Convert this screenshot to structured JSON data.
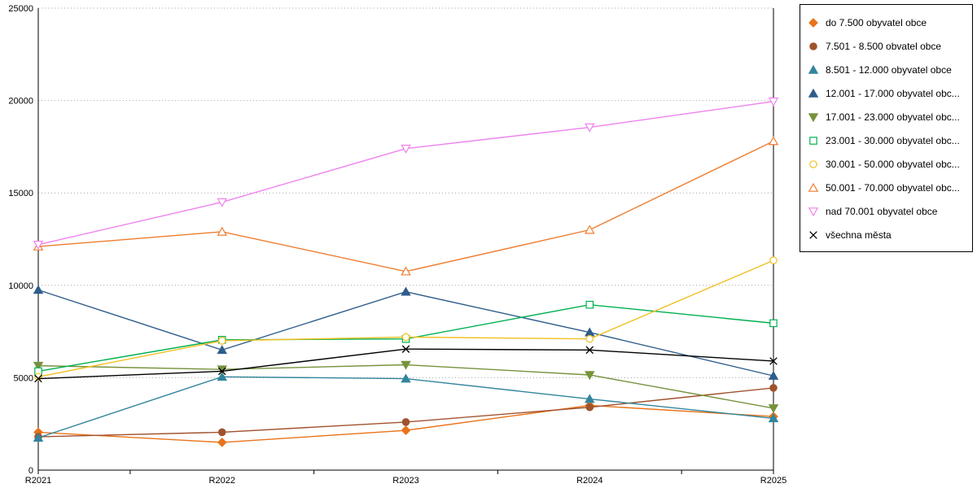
{
  "chart_data": {
    "type": "line",
    "title": "",
    "xlabel": "",
    "ylabel": "",
    "categories": [
      "R2021",
      "R2022",
      "R2023",
      "R2024",
      "R2025"
    ],
    "ylim": [
      0,
      25000
    ],
    "yticks": [
      0,
      5000,
      10000,
      15000,
      20000,
      25000
    ],
    "grid": "horizontal-dotted",
    "legend_position": "right",
    "gridline_color": "#a6a6a6",
    "axis_color": "#000000",
    "series": [
      {
        "name": "do 7.500 obyvatel obce",
        "color": "#e8731a",
        "marker": "diamond",
        "fill": "filled",
        "values": [
          2050,
          1500,
          2150,
          3500,
          2900
        ]
      },
      {
        "name": "7.501 - 8.500 obvatel obce",
        "color": "#a0522d",
        "marker": "circle",
        "fill": "filled",
        "values": [
          1800,
          2050,
          2600,
          3400,
          4450
        ]
      },
      {
        "name": "8.501 - 12.000 obyvatel obce",
        "color": "#31859c",
        "marker": "triangle-up",
        "fill": "filled",
        "values": [
          1750,
          5050,
          4950,
          3850,
          2800
        ]
      },
      {
        "name": "12.001 - 17.000 obyvatel obc...",
        "color": "#2f5d8c",
        "marker": "triangle-up",
        "fill": "filled",
        "values": [
          9750,
          6500,
          9650,
          7450,
          5100
        ]
      },
      {
        "name": "17.001 - 23.000 obyvatel obc...",
        "color": "#76923c",
        "marker": "triangle-down",
        "fill": "filled",
        "values": [
          5650,
          5450,
          5700,
          5150,
          3350
        ]
      },
      {
        "name": "23.001 - 30.000 obyvatel obc...",
        "color": "#00b050",
        "marker": "square",
        "fill": "hollow",
        "values": [
          5350,
          7050,
          7100,
          8950,
          7950
        ]
      },
      {
        "name": "30.001 - 50.000 obyvatel obc...",
        "color": "#f0c020",
        "marker": "circle",
        "fill": "hollow",
        "values": [
          5050,
          7000,
          7200,
          7100,
          11350
        ]
      },
      {
        "name": "50.001 - 70.000 obyvatel obc...",
        "color": "#ed7d31",
        "marker": "triangle-up",
        "fill": "hollow",
        "values": [
          12100,
          12900,
          10750,
          13000,
          17800
        ]
      },
      {
        "name": "nad 70.001 obyvatel obce",
        "color": "#ee82ee",
        "marker": "triangle-down",
        "fill": "hollow",
        "values": [
          12200,
          14500,
          17400,
          18550,
          19950
        ]
      },
      {
        "name": "všechna města",
        "color": "#000000",
        "marker": "x",
        "fill": "line",
        "values": [
          4950,
          5350,
          6550,
          6500,
          5900
        ]
      }
    ]
  }
}
